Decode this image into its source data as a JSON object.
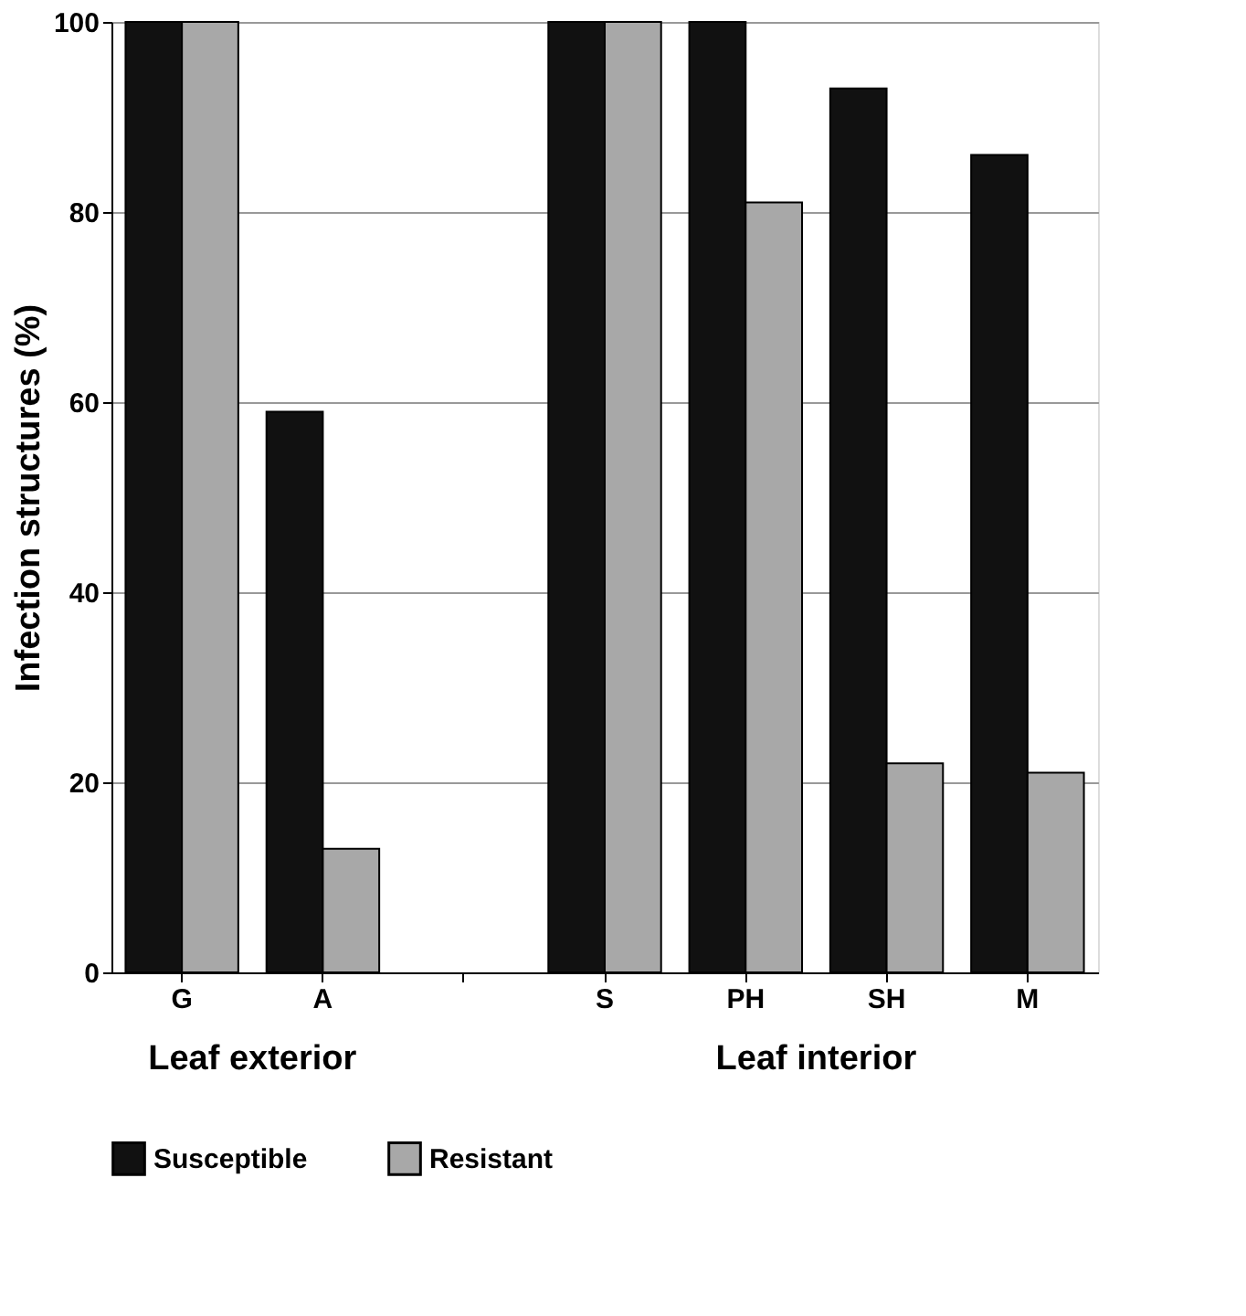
{
  "chart_data": {
    "type": "bar",
    "ylabel": "Infection structures (%)",
    "categories": [
      "G",
      "A",
      null,
      "S",
      "PH",
      "SH",
      "M"
    ],
    "series": [
      {
        "name": "Susceptible",
        "color": "#111111",
        "values": [
          100,
          59,
          null,
          100,
          100,
          93,
          86
        ]
      },
      {
        "name": "Resistant",
        "color": "#a8a8a8",
        "values": [
          100,
          13,
          null,
          100,
          81,
          22,
          21
        ]
      }
    ],
    "ylim": [
      0,
      100
    ],
    "yticks": [
      0,
      20,
      40,
      60,
      80,
      100
    ],
    "grid": "y",
    "legend": "bottom",
    "annotations": [
      "Leaf exterior",
      "Leaf interior"
    ]
  }
}
